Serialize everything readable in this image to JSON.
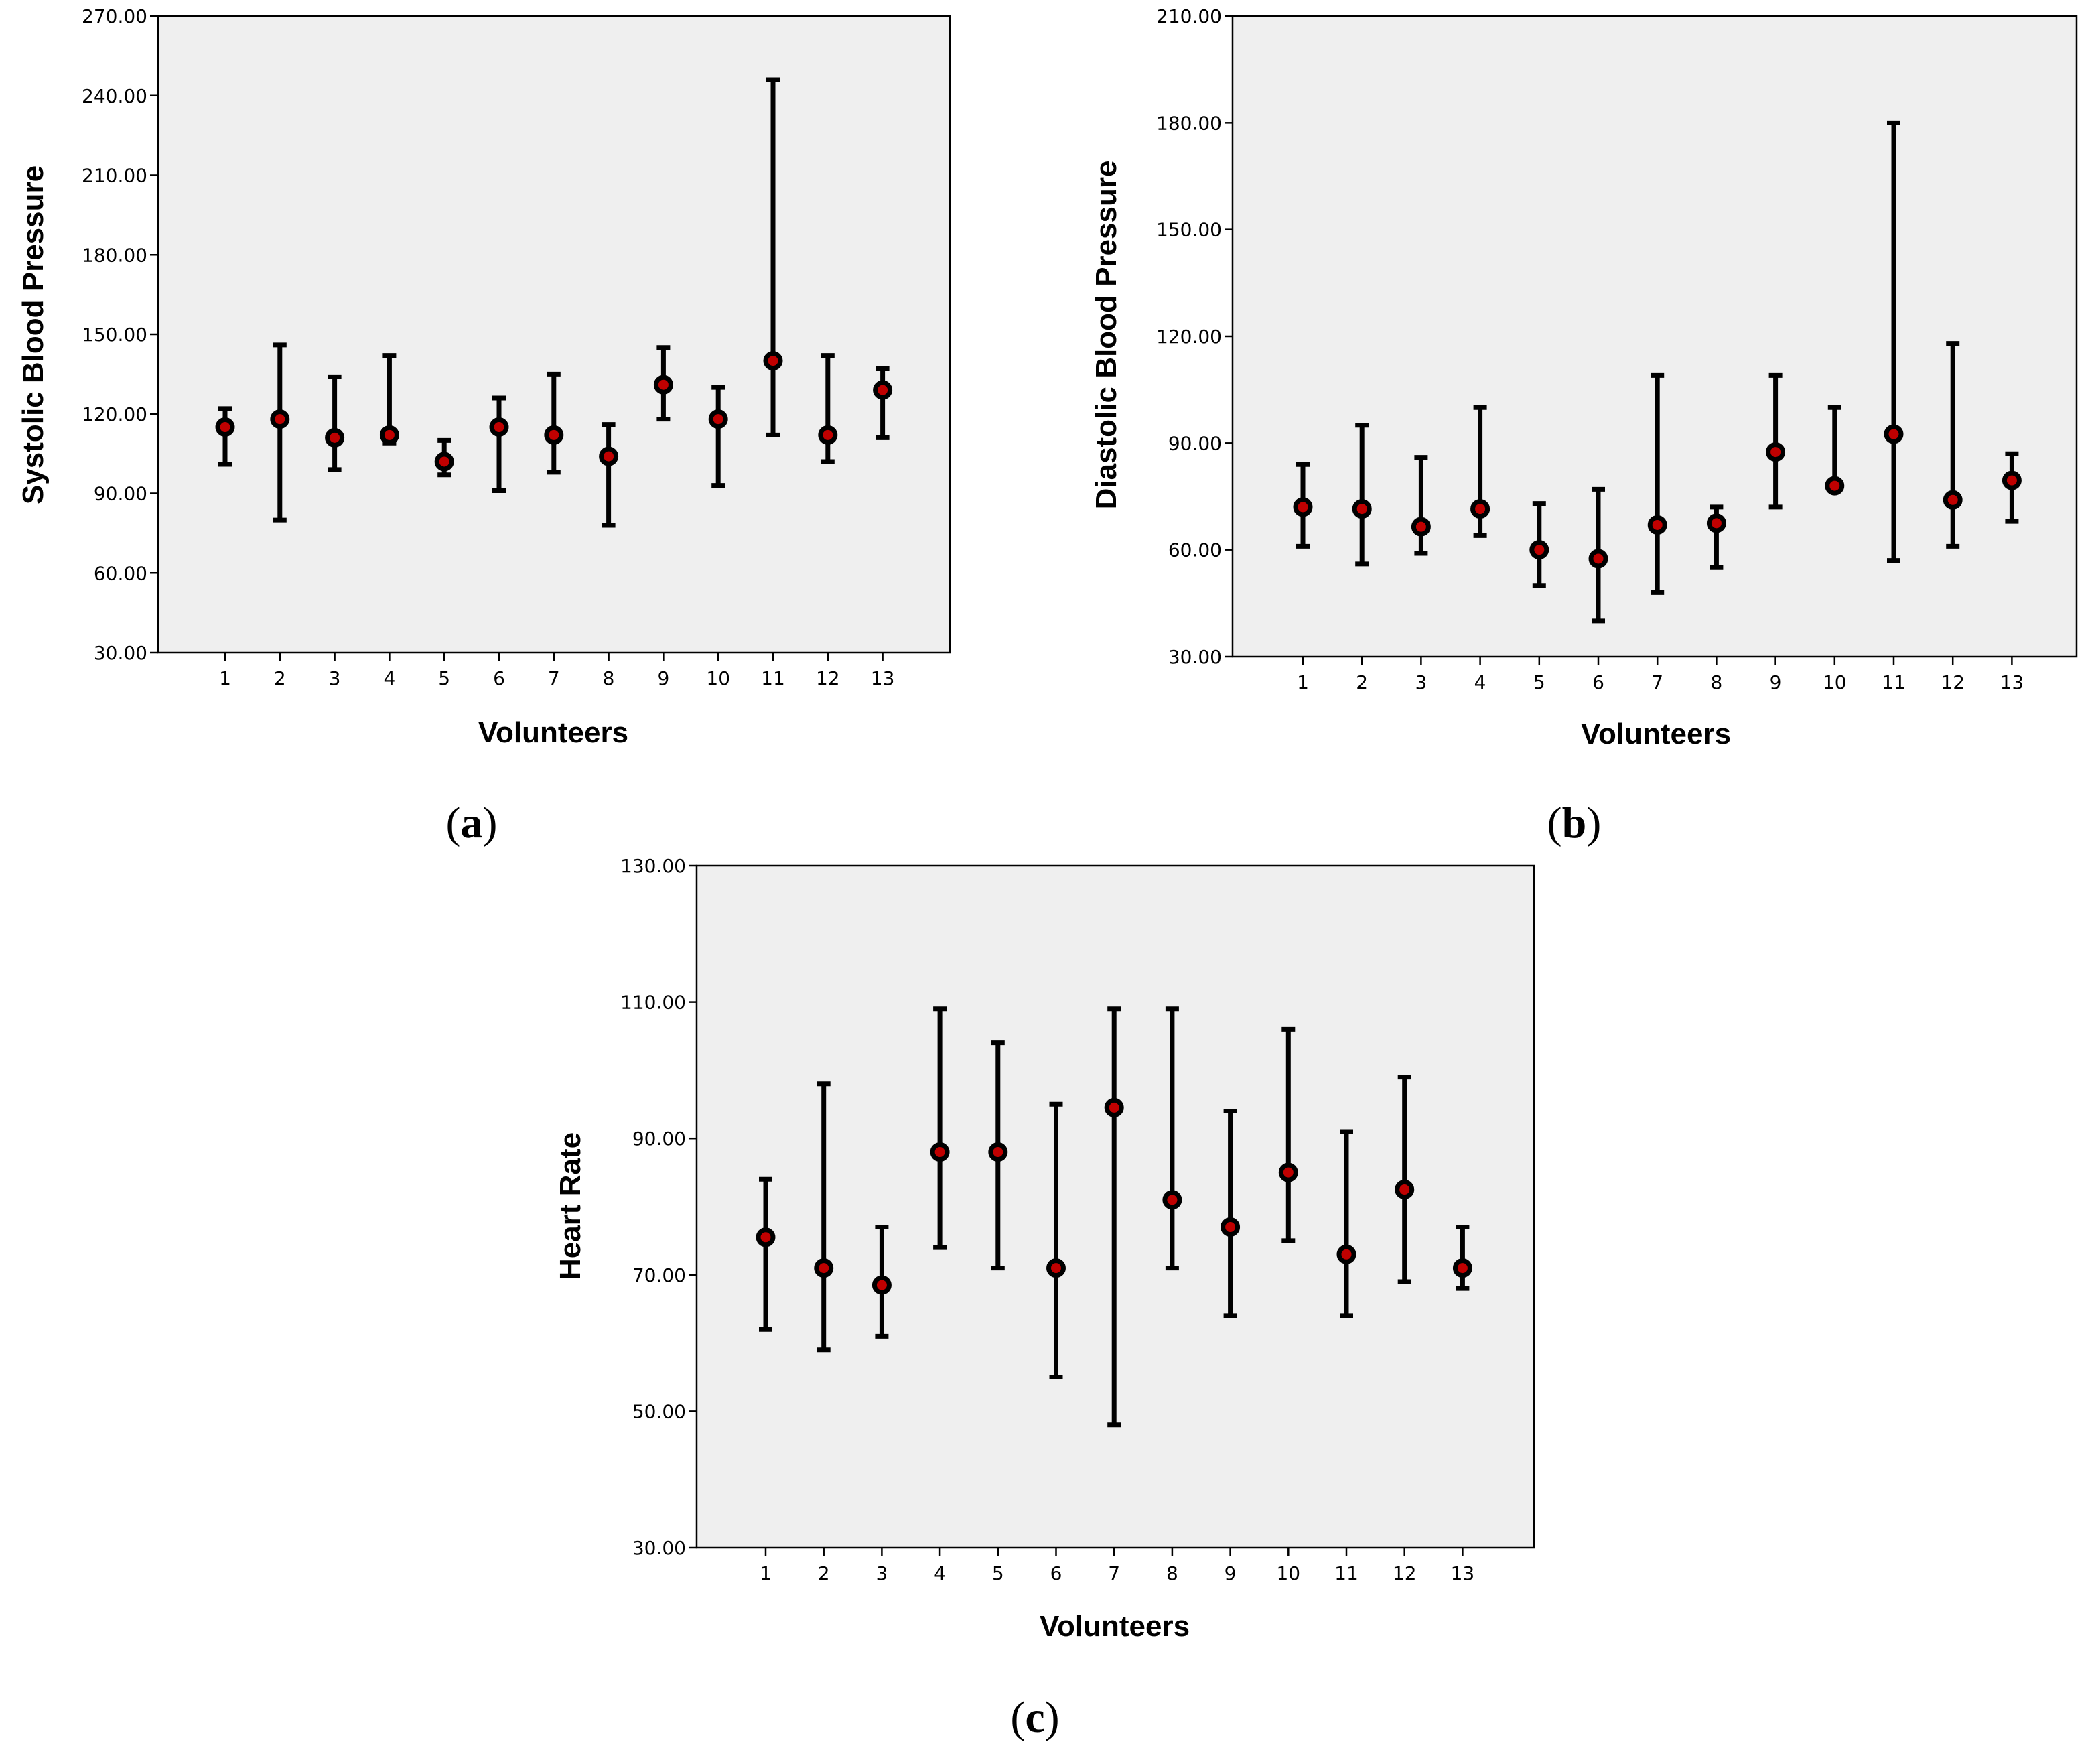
{
  "chart_data": [
    {
      "id": "a",
      "type": "errorbar",
      "caption": "a",
      "xlabel": "Volunteers",
      "ylabel": "Systolic Blood Pressure",
      "ylim": [
        30,
        270
      ],
      "yticks": [
        30,
        60,
        90,
        120,
        150,
        180,
        210,
        240,
        270
      ],
      "ytick_labels": [
        "30.00",
        "60.00",
        "90.00",
        "120.00",
        "150.00",
        "180.00",
        "210.00",
        "240.00",
        "270.00"
      ],
      "categories": [
        "1",
        "2",
        "3",
        "4",
        "5",
        "6",
        "7",
        "8",
        "9",
        "10",
        "11",
        "12",
        "13"
      ],
      "mean": [
        115,
        118,
        111,
        112,
        102,
        115,
        112,
        104,
        131,
        118,
        140,
        112,
        129
      ],
      "lower": [
        101,
        80,
        99,
        109,
        97,
        91,
        98,
        78,
        118,
        93,
        112,
        102,
        111
      ],
      "upper": [
        122,
        146,
        134,
        142,
        110,
        126,
        135,
        116,
        145,
        130,
        246,
        142,
        137
      ]
    },
    {
      "id": "b",
      "type": "errorbar",
      "caption": "b",
      "xlabel": "Volunteers",
      "ylabel": "Diastolic Blood Pressure",
      "ylim": [
        30,
        210
      ],
      "yticks": [
        30,
        60,
        90,
        120,
        150,
        180,
        210
      ],
      "ytick_labels": [
        "30.00",
        "60.00",
        "90.00",
        "120.00",
        "150.00",
        "180.00",
        "210.00"
      ],
      "categories": [
        "1",
        "2",
        "3",
        "4",
        "5",
        "6",
        "7",
        "8",
        "9",
        "10",
        "11",
        "12",
        "13"
      ],
      "mean": [
        72,
        71.5,
        66.5,
        71.5,
        60,
        57.5,
        67,
        67.5,
        87.5,
        78,
        92.5,
        74,
        79.5
      ],
      "lower": [
        61,
        56,
        59,
        64,
        50,
        40,
        48,
        55,
        72,
        78,
        57,
        61,
        68
      ],
      "upper": [
        84,
        95,
        86,
        100,
        73,
        77,
        109,
        72,
        109,
        100,
        180,
        118,
        87
      ]
    },
    {
      "id": "c",
      "type": "errorbar",
      "caption": "c",
      "xlabel": "Volunteers",
      "ylabel": "Heart Rate",
      "ylim": [
        30,
        130
      ],
      "yticks": [
        30,
        50,
        70,
        90,
        110,
        130
      ],
      "ytick_labels": [
        "30.00",
        "50.00",
        "70.00",
        "90.00",
        "110.00",
        "130.00"
      ],
      "categories": [
        "1",
        "2",
        "3",
        "4",
        "5",
        "6",
        "7",
        "8",
        "9",
        "10",
        "11",
        "12",
        "13"
      ],
      "mean": [
        75.5,
        71,
        68.5,
        88,
        88,
        71,
        94.5,
        81,
        77,
        85,
        73,
        82.5,
        71
      ],
      "lower": [
        62,
        59,
        61,
        74,
        71,
        55,
        48,
        71,
        64,
        75,
        64,
        69,
        68
      ],
      "upper": [
        84,
        98,
        77,
        109,
        104,
        95,
        109,
        109,
        94,
        106,
        91,
        99,
        77
      ]
    }
  ]
}
